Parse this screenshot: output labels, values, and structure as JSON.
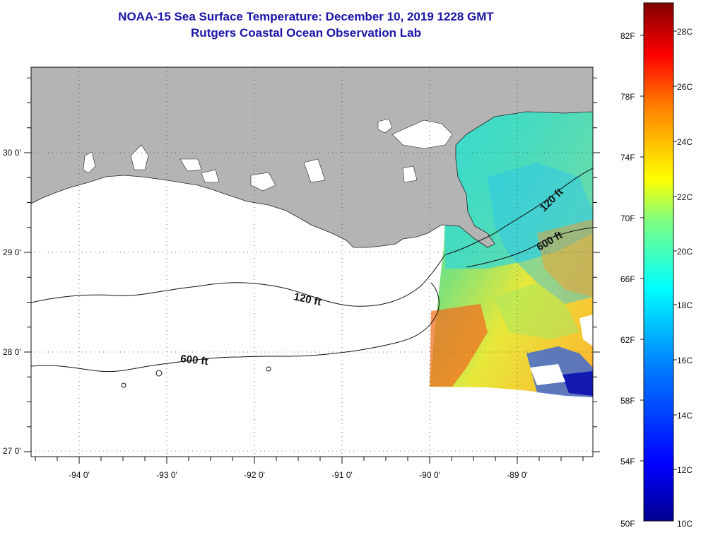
{
  "title": {
    "line1": "NOAA-15 Sea Surface Temperature:  December 10, 2019 1228 GMT",
    "line2": "Rutgers Coastal Ocean Observation Lab"
  },
  "map": {
    "longitude_ticks": [
      {
        "value": -94,
        "label": "-94 0'"
      },
      {
        "value": -93,
        "label": "-93 0'"
      },
      {
        "value": -92,
        "label": "-92 0'"
      },
      {
        "value": -91,
        "label": "-91 0'"
      },
      {
        "value": -90,
        "label": "-90 0'"
      },
      {
        "value": -89,
        "label": "-89 0'"
      }
    ],
    "latitude_ticks": [
      {
        "value": 30,
        "label": "30 0'"
      },
      {
        "value": 29,
        "label": "29 0'"
      },
      {
        "value": 28,
        "label": "28 0'"
      },
      {
        "value": 27,
        "label": "27 0'"
      }
    ],
    "contour_labels": [
      {
        "text": "120 ft",
        "lon": -91.2,
        "lat": 28.5
      },
      {
        "text": "600 ft",
        "lon": -93.2,
        "lat": 27.9
      },
      {
        "text": "120 ft",
        "lon": -88.7,
        "lat": 29.5
      },
      {
        "text": "600 ft",
        "lon": -88.6,
        "lat": 29.1
      }
    ],
    "land_color": "#b4b4b4",
    "water_color": "#ffffff"
  },
  "colorbar": {
    "fahrenheit_labels": [
      "82F",
      "78F",
      "74F",
      "70F",
      "66F",
      "62F",
      "58F",
      "54F",
      "50F"
    ],
    "celsius_labels": [
      "28C",
      "26C",
      "24C",
      "22C",
      "20C",
      "18C",
      "16C",
      "14C",
      "12C",
      "10C"
    ],
    "colors": [
      "#7f0000",
      "#ff0000",
      "#ff8000",
      "#ffff00",
      "#80ff80",
      "#00ffff",
      "#0080ff",
      "#0000ff",
      "#00008f"
    ]
  }
}
